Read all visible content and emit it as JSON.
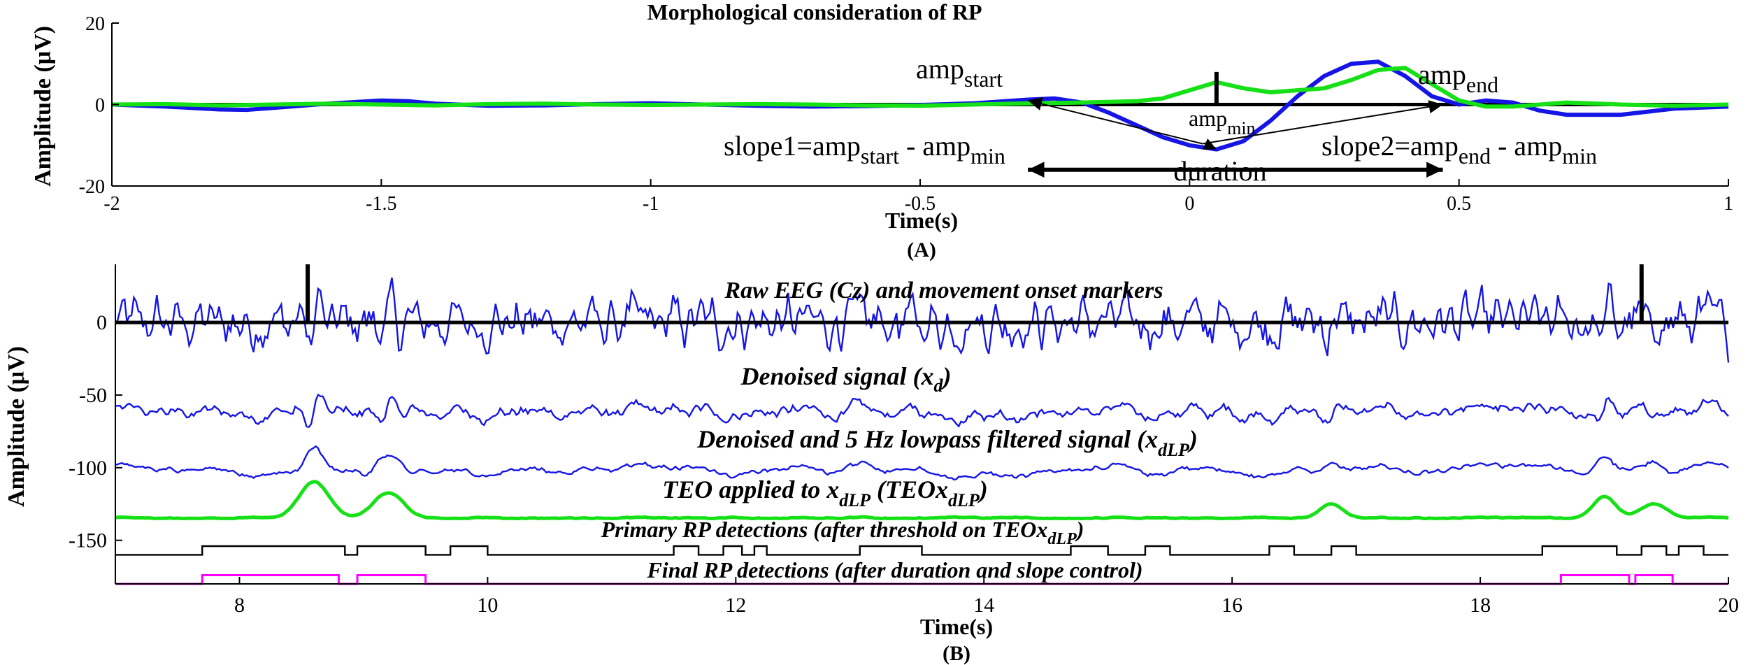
{
  "chart_data": [
    {
      "type": "line",
      "panel": "A",
      "panel_label": "(A)",
      "title": "Morphological consideration of RP",
      "xlabel": "Time(s)",
      "ylabel": "Amplitude (μV)",
      "xlim": [
        -2,
        1
      ],
      "ylim": [
        -20,
        20
      ],
      "x_ticks": [
        -2,
        -1.5,
        -1,
        -0.5,
        0,
        0.5,
        1
      ],
      "x_tick_labels": [
        "-2",
        "-1.5",
        "-1",
        "-0.5",
        "0",
        "0.5",
        "1"
      ],
      "y_ticks": [
        -20,
        0,
        20
      ],
      "y_tick_labels": [
        "-20",
        "0",
        "20"
      ],
      "grid": false,
      "colors": {
        "blue": "#1515e6",
        "green": "#16e016",
        "axis": "#000000"
      },
      "series": [
        {
          "color": "#1515e6",
          "x": [
            -2.0,
            -1.9,
            -1.8,
            -1.75,
            -1.7,
            -1.6,
            -1.5,
            -1.45,
            -1.4,
            -1.3,
            -1.2,
            -1.1,
            -1.0,
            -0.9,
            -0.8,
            -0.7,
            -0.6,
            -0.5,
            -0.4,
            -0.3,
            -0.25,
            -0.2,
            -0.15,
            -0.1,
            -0.05,
            0.0,
            0.05,
            0.1,
            0.15,
            0.2,
            0.25,
            0.3,
            0.35,
            0.4,
            0.45,
            0.5,
            0.55,
            0.6,
            0.65,
            0.7,
            0.8,
            0.9,
            1.0
          ],
          "y": [
            0.0,
            -0.5,
            -1.2,
            -1.3,
            -0.8,
            0.2,
            1.0,
            0.8,
            0.2,
            -0.3,
            -0.2,
            0.1,
            0.3,
            0.0,
            -0.3,
            -0.5,
            -0.4,
            -0.1,
            0.3,
            1.2,
            1.5,
            0.5,
            -2.0,
            -5.0,
            -8.0,
            -10.0,
            -11.0,
            -9.0,
            -4.0,
            2.0,
            7.0,
            10.0,
            10.5,
            7.0,
            2.0,
            0.0,
            1.0,
            0.5,
            -1.5,
            -2.5,
            -2.5,
            -1.0,
            -0.5
          ]
        },
        {
          "color": "#16e016",
          "x": [
            -2.0,
            -1.9,
            -1.8,
            -1.7,
            -1.6,
            -1.5,
            -1.4,
            -1.3,
            -1.2,
            -1.1,
            -1.0,
            -0.9,
            -0.8,
            -0.7,
            -0.6,
            -0.5,
            -0.4,
            -0.3,
            -0.2,
            -0.1,
            -0.05,
            0.0,
            0.05,
            0.1,
            0.15,
            0.2,
            0.25,
            0.3,
            0.35,
            0.4,
            0.45,
            0.5,
            0.55,
            0.6,
            0.65,
            0.7,
            0.8,
            0.9,
            1.0
          ],
          "y": [
            0.0,
            0.1,
            -0.2,
            0.0,
            0.2,
            0.0,
            -0.2,
            0.1,
            0.2,
            0.0,
            -0.1,
            0.0,
            0.1,
            0.0,
            -0.2,
            -0.3,
            0.0,
            0.3,
            0.5,
            0.8,
            1.5,
            3.5,
            5.5,
            4.0,
            3.0,
            3.5,
            4.0,
            6.0,
            8.5,
            9.0,
            5.0,
            1.0,
            -0.5,
            -0.5,
            0.0,
            0.5,
            0.0,
            -0.3,
            0.0
          ]
        }
      ],
      "baseline": {
        "color": "#000000",
        "y": 0
      },
      "onset_marker": {
        "x": 0.05,
        "y": [
          0,
          8
        ]
      },
      "annotations": {
        "amp_start": {
          "base": "amp",
          "sub": "start"
        },
        "amp_end": {
          "base": "amp",
          "sub": "end"
        },
        "amp_min": {
          "base": "amp",
          "sub": "min"
        },
        "slope1": {
          "a": "slope1=amp",
          "a_sub": "start",
          "b": " - amp",
          "b_sub": "min"
        },
        "slope2": {
          "a": "slope2=amp",
          "a_sub": "end",
          "b": " - amp",
          "b_sub": "min"
        },
        "duration": "duration"
      },
      "annotation_points": {
        "start": {
          "x": -0.3,
          "y": 1
        },
        "min": {
          "x": 0.05,
          "y": -11
        },
        "end": {
          "x": 0.47,
          "y": 0
        },
        "duration_x": [
          -0.3,
          0.47
        ],
        "duration_y": -16
      }
    },
    {
      "type": "line",
      "panel": "B",
      "panel_label": "(B)",
      "xlabel": "Time(s)",
      "ylabel": "Amplitude (μV)",
      "xlim": [
        7,
        20
      ],
      "ylim": [
        -180,
        40
      ],
      "x_ticks": [
        8,
        10,
        12,
        14,
        16,
        18,
        20
      ],
      "x_tick_labels": [
        "8",
        "10",
        "12",
        "14",
        "16",
        "18",
        "20"
      ],
      "y_ticks": [
        0,
        -50,
        -100,
        -150
      ],
      "y_tick_labels": [
        "0",
        "-50",
        "-100",
        "-150"
      ],
      "grid": false,
      "movement_onsets": [
        8.55,
        19.3
      ],
      "series": [
        {
          "color": "#1515e6",
          "offset": 0,
          "noise": 14
        },
        {
          "color": "#1515e6",
          "offset": -62,
          "noise": 5
        },
        {
          "color": "#1515e6",
          "offset": -102,
          "noise": 4
        },
        {
          "color": "#16e016",
          "offset": -135,
          "noise": 1
        },
        {
          "color": "#000000",
          "offset": -160
        },
        {
          "color": "#ff00ff",
          "offset": -180
        }
      ],
      "labels": {
        "raw": "Raw EEG (Cz) and movement onset markers",
        "denoised": {
          "text": "Denoised signal (x",
          "sub": "d",
          "tail": ")"
        },
        "lowpass": {
          "text": "Denoised and  5 Hz lowpass filtered signal (x",
          "sub": "dLP",
          "tail": ")"
        },
        "teo": {
          "text": "TEO applied to x",
          "sub": "dLP",
          "mid": " (TEOx",
          "sub2": "dLP",
          "tail": ")"
        },
        "primary": {
          "text": "Primary RP detections (after threshold on TEOx",
          "sub": "dLP",
          "tail": ")"
        },
        "final": "Final RP detections (after duration and slope control)"
      },
      "primary_detections": [
        [
          7.7,
          8.85
        ],
        [
          8.95,
          9.5
        ],
        [
          9.7,
          10.0
        ],
        [
          11.5,
          11.7
        ],
        [
          11.9,
          12.05
        ],
        [
          12.15,
          12.25
        ],
        [
          13.0,
          13.5
        ],
        [
          14.7,
          15.0
        ],
        [
          15.3,
          15.5
        ],
        [
          16.3,
          16.5
        ],
        [
          16.8,
          17.0
        ],
        [
          18.5,
          19.1
        ],
        [
          19.3,
          19.5
        ],
        [
          19.6,
          19.8
        ]
      ],
      "final_detections": [
        [
          7.7,
          8.8
        ],
        [
          8.95,
          9.5
        ],
        [
          18.65,
          19.2
        ],
        [
          19.25,
          19.55
        ]
      ]
    }
  ]
}
